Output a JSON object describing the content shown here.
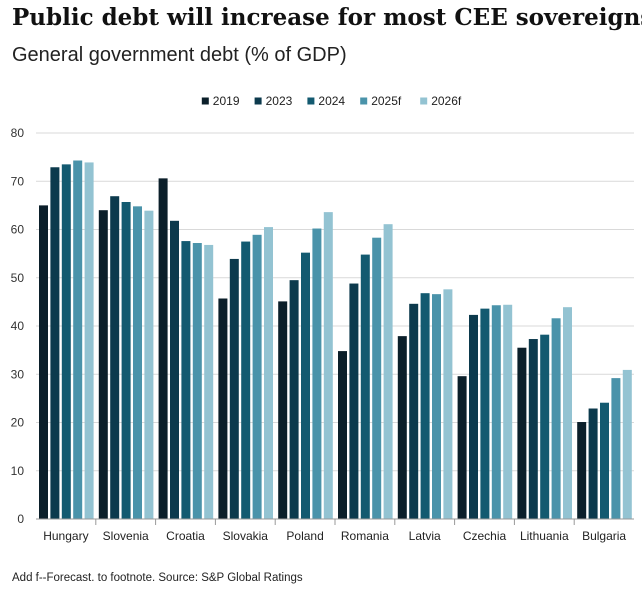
{
  "title": "Public debt will increase for most CEE sovereigns",
  "subtitle": "General government debt (% of GDP)",
  "footnote": "Add f--Forecast. to footnote. Source: S&P Global Ratings",
  "chart_data": {
    "type": "bar",
    "title": "Public debt will increase for most CEE sovereigns",
    "subtitle": "General government debt (% of GDP)",
    "xlabel": "",
    "ylabel": "",
    "ylim": [
      0,
      80
    ],
    "yticks": [
      0,
      10,
      20,
      30,
      40,
      50,
      60,
      70,
      80
    ],
    "grid": true,
    "legend_position": "top-center",
    "categories": [
      "Hungary",
      "Slovenia",
      "Croatia",
      "Slovakia",
      "Poland",
      "Romania",
      "Latvia",
      "Czechia",
      "Lithuania",
      "Bulgaria"
    ],
    "series": [
      {
        "name": "2019",
        "color": "#0b1f2a",
        "values": [
          65.0,
          64.0,
          70.6,
          45.7,
          45.1,
          34.8,
          37.9,
          29.6,
          35.5,
          20.1
        ]
      },
      {
        "name": "2023",
        "color": "#0c3a4d",
        "values": [
          72.9,
          66.9,
          61.8,
          53.9,
          49.5,
          48.8,
          44.6,
          42.3,
          37.3,
          22.9
        ]
      },
      {
        "name": "2024",
        "color": "#135a70",
        "values": [
          73.5,
          65.7,
          57.6,
          57.5,
          55.2,
          54.8,
          46.8,
          43.6,
          38.2,
          24.1
        ]
      },
      {
        "name": "2025f",
        "color": "#4a93aa",
        "values": [
          74.3,
          64.8,
          57.2,
          58.9,
          60.2,
          58.3,
          46.6,
          44.3,
          41.6,
          29.2
        ]
      },
      {
        "name": "2026f",
        "color": "#93c3d2",
        "values": [
          73.9,
          63.9,
          56.8,
          60.5,
          63.6,
          61.1,
          47.6,
          44.4,
          43.9,
          30.9
        ]
      }
    ]
  }
}
